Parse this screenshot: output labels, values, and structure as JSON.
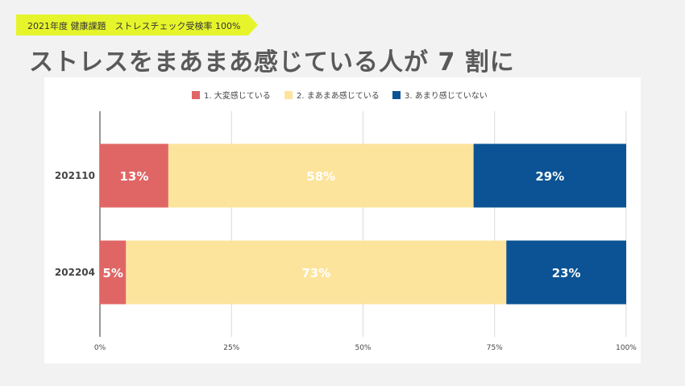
{
  "banner": {
    "text": "2021年度 健康課題　ストレスチェック受検率 100%"
  },
  "headline": "ストレスをまあまあ感じている人が 7 割に",
  "colors": {
    "series1": "#e06666",
    "series2": "#fde49c",
    "series3": "#0b5394",
    "grid": "#d9d9d9",
    "axis": "#333333",
    "background": "#ffffff"
  },
  "chart_data": {
    "type": "bar",
    "orientation": "horizontal",
    "stacked": "percent",
    "categories": [
      "202110",
      "202204"
    ],
    "series": [
      {
        "name": "1. 大変感じている",
        "values": [
          13,
          5
        ],
        "labels": [
          "13%",
          "5%"
        ]
      },
      {
        "name": "2. まあまあ感じている",
        "values": [
          58,
          73
        ],
        "labels": [
          "58%",
          "73%"
        ]
      },
      {
        "name": "3. あまり感じていない",
        "values": [
          29,
          23
        ],
        "labels": [
          "29%",
          "23%"
        ]
      }
    ],
    "xlim": [
      0,
      100
    ],
    "xticks": [
      "0%",
      "25%",
      "50%",
      "75%",
      "100%"
    ],
    "grid": true,
    "legend": "top-center"
  }
}
